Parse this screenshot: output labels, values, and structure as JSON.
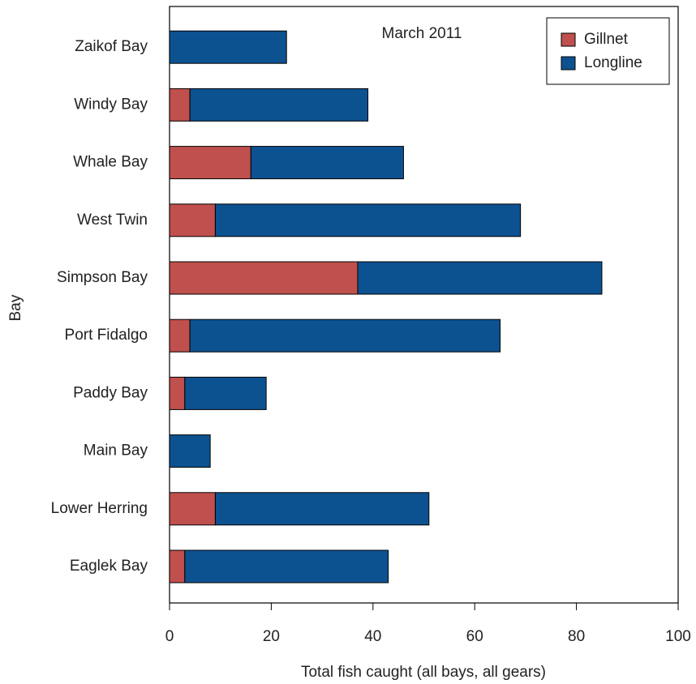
{
  "chart_data": {
    "type": "stacked-bar-horizontal",
    "title": "March 2011",
    "x_label": "Total fish caught (all bays, all gears)",
    "y_label": "Bay",
    "categories": [
      "Eaglek Bay",
      "Lower Herring",
      "Main Bay",
      "Paddy Bay",
      "Port Fidalgo",
      "Simpson Bay",
      "West Twin",
      "Whale Bay",
      "Windy Bay",
      "Zaikof Bay"
    ],
    "series": [
      {
        "name": "Gillnet",
        "color": "#c0504d",
        "values": [
          3,
          9,
          0,
          3,
          4,
          37,
          9,
          16,
          4,
          0
        ]
      },
      {
        "name": "Longline",
        "color": "#0d5290",
        "values": [
          40,
          42,
          8,
          16,
          61,
          48,
          60,
          30,
          35,
          23
        ]
      }
    ],
    "xlim": [
      0,
      100
    ],
    "xticks": [
      0,
      20,
      40,
      60,
      80,
      100
    ],
    "legend": "top-right",
    "grid": false
  }
}
